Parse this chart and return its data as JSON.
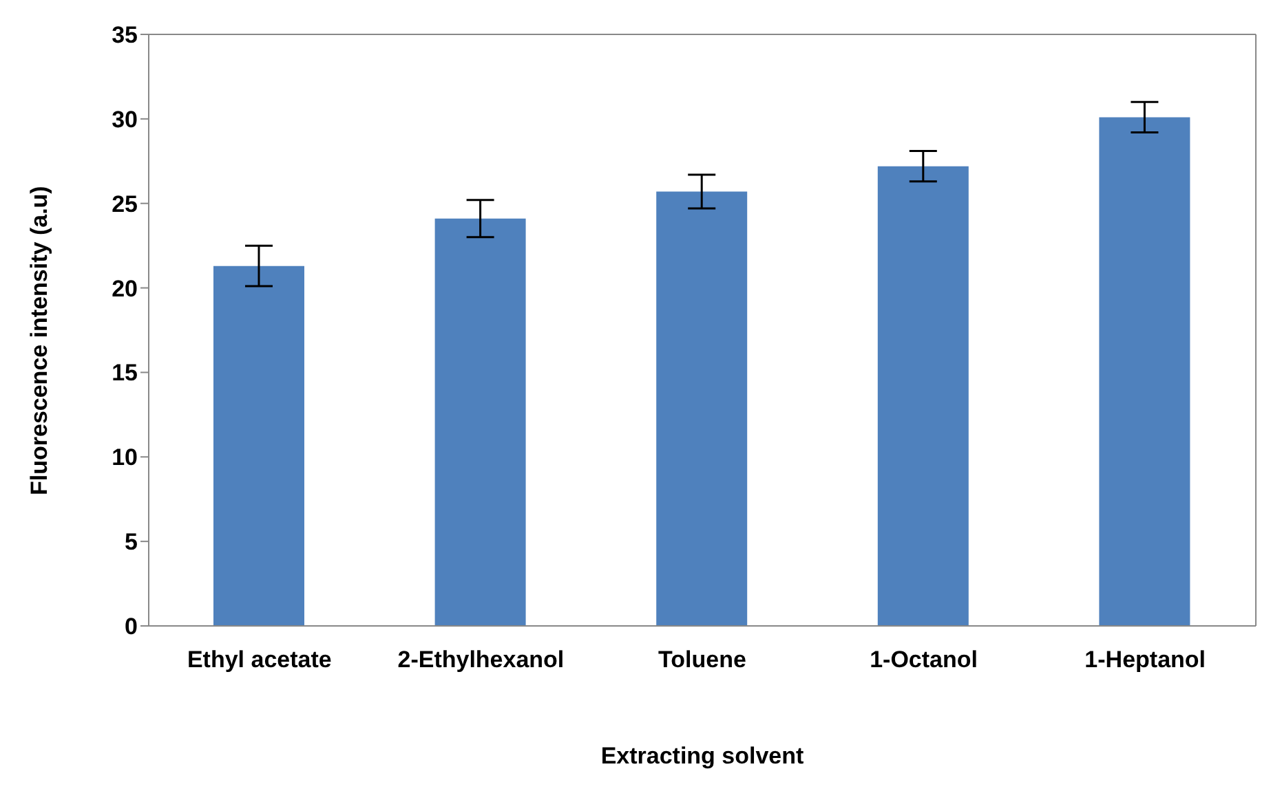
{
  "chart_data": {
    "type": "bar",
    "xlabel": "Extracting solvent",
    "ylabel": "Fluorescence intensity (a.u)",
    "categories": [
      "Ethyl acetate",
      "2-Ethylhexanol",
      "Toluene",
      "1-Octanol",
      "1-Heptanol"
    ],
    "values": [
      21.3,
      24.1,
      25.7,
      27.2,
      30.1
    ],
    "errors": [
      1.2,
      1.1,
      1.0,
      0.9,
      0.9
    ],
    "color": "#4f81bd",
    "ylim": [
      0,
      35
    ],
    "yticks": [
      0,
      5,
      10,
      15,
      20,
      25,
      30,
      35
    ]
  }
}
